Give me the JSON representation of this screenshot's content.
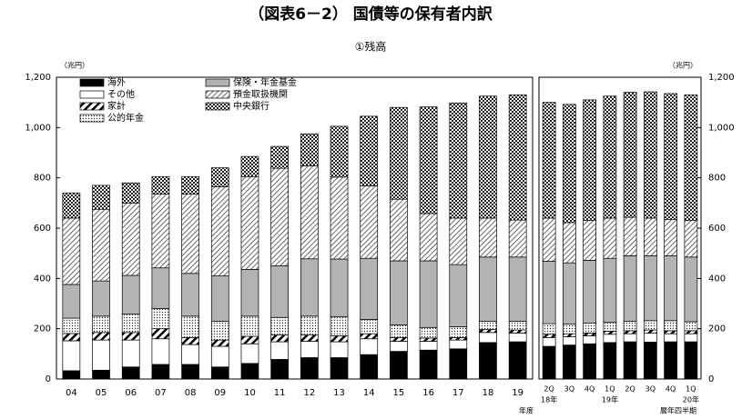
{
  "chart_data": [
    {
      "type": "bar",
      "stacked": true,
      "title": "（図表6－2） 国債等の保有者内訳",
      "subtitle": "①残高",
      "y_unit": "（兆円）",
      "x_label": "年度",
      "categories": [
        "04",
        "05",
        "06",
        "07",
        "08",
        "09",
        "10",
        "11",
        "12",
        "13",
        "14",
        "15",
        "16",
        "17",
        "18",
        "19"
      ],
      "ylim": [
        0,
        1200
      ],
      "yticks": [
        0,
        200,
        400,
        600,
        800,
        {
          "value": 1000,
          "label": "1,000"
        },
        {
          "value": 1200,
          "label": "1,200"
        }
      ],
      "series": [
        {
          "name": "海外",
          "pattern": "black",
          "values": [
            33,
            35,
            48,
            58,
            58,
            48,
            62,
            78,
            85,
            85,
            97,
            110,
            115,
            120,
            145,
            148
          ]
        },
        {
          "name": "その他",
          "pattern": "white",
          "values": [
            119,
            120,
            107,
            102,
            79,
            82,
            78,
            70,
            65,
            63,
            63,
            40,
            35,
            35,
            40,
            35
          ]
        },
        {
          "name": "家計",
          "pattern": "thick-hatch",
          "values": [
            29,
            30,
            30,
            40,
            28,
            25,
            30,
            27,
            25,
            24,
            20,
            15,
            13,
            10,
            12,
            12
          ]
        },
        {
          "name": "公的年金",
          "pattern": "dots",
          "values": [
            61,
            65,
            73,
            80,
            85,
            75,
            80,
            70,
            75,
            75,
            57,
            50,
            42,
            43,
            33,
            35
          ]
        },
        {
          "name": "保険・年金基金",
          "pattern": "gray",
          "values": [
            134,
            140,
            154,
            162,
            170,
            180,
            186,
            205,
            228,
            230,
            243,
            255,
            265,
            247,
            255,
            255
          ]
        },
        {
          "name": "預金取扱機関",
          "pattern": "hatch",
          "values": [
            264,
            285,
            288,
            293,
            315,
            355,
            369,
            388,
            370,
            326,
            288,
            245,
            188,
            185,
            155,
            147
          ]
        },
        {
          "name": "中央銀行",
          "pattern": "checker",
          "values": [
            100,
            95,
            80,
            70,
            70,
            75,
            80,
            87,
            127,
            202,
            277,
            365,
            424,
            458,
            485,
            498
          ]
        }
      ]
    },
    {
      "type": "bar",
      "stacked": true,
      "y_unit": "（兆円）",
      "x_label": "暦年四半期",
      "categories": [
        "2Q",
        "3Q",
        "4Q",
        "1Q",
        "2Q",
        "3Q",
        "4Q",
        "1Q"
      ],
      "category_years": [
        "18年",
        null,
        null,
        "19年",
        null,
        null,
        null,
        "20年"
      ],
      "ylim": [
        0,
        1200
      ],
      "yticks": [
        0,
        200,
        400,
        600,
        800,
        {
          "value": 1000,
          "label": "1,000"
        },
        {
          "value": 1200,
          "label": "1,200"
        }
      ],
      "series": [
        {
          "values": [
            130,
            135,
            140,
            145,
            148,
            147,
            148,
            148
          ]
        },
        {
          "values": [
            35,
            33,
            32,
            33,
            32,
            35,
            32,
            32
          ]
        },
        {
          "values": [
            13,
            12,
            11,
            12,
            12,
            13,
            12,
            12
          ]
        },
        {
          "values": [
            42,
            38,
            39,
            35,
            38,
            37,
            40,
            36
          ]
        },
        {
          "values": [
            248,
            244,
            250,
            255,
            260,
            258,
            258,
            257
          ]
        },
        {
          "values": [
            172,
            160,
            158,
            160,
            153,
            150,
            145,
            145
          ]
        },
        {
          "values": [
            460,
            470,
            480,
            485,
            497,
            502,
            500,
            500
          ]
        }
      ]
    }
  ]
}
